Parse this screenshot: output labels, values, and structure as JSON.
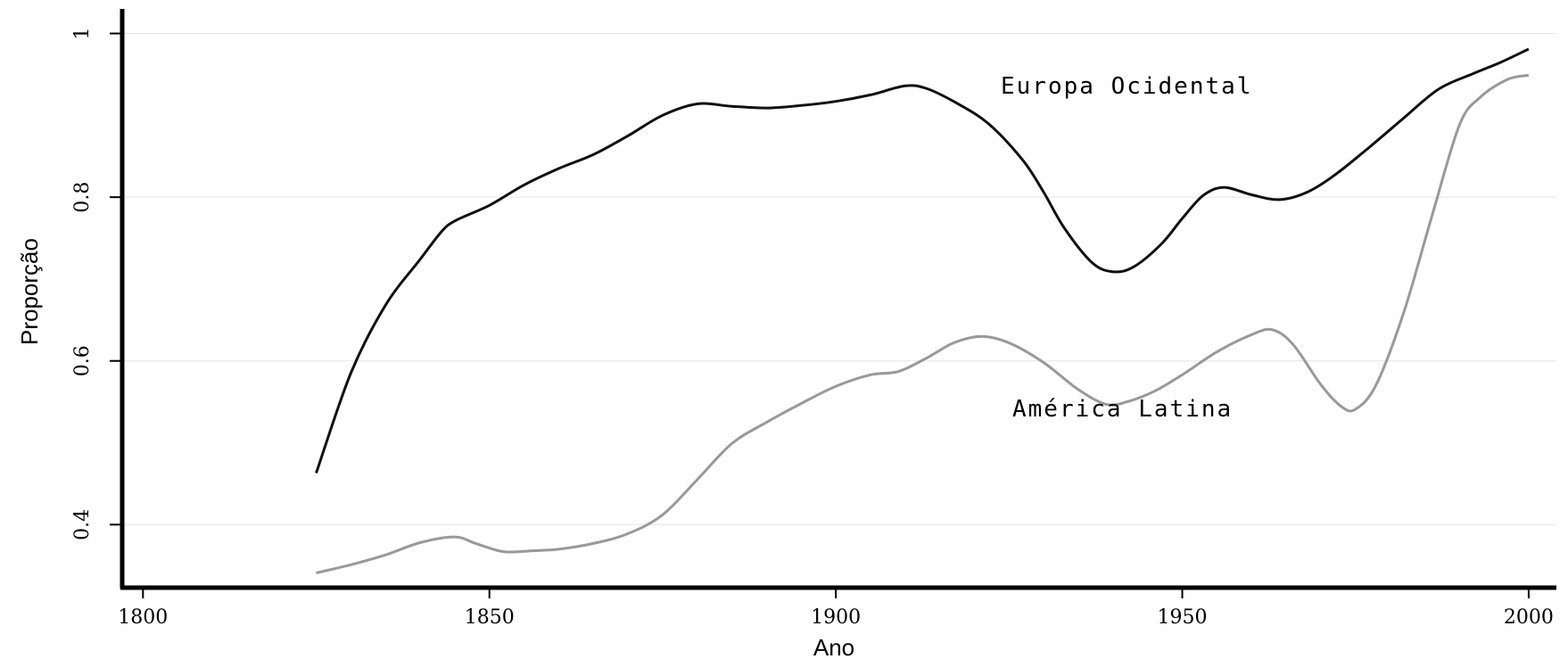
{
  "chart_data": {
    "type": "line",
    "title": "",
    "xlabel": "Ano",
    "ylabel": "Proporção",
    "xlim": [
      1797,
      2004
    ],
    "ylim": [
      0.323,
      1.03
    ],
    "x_ticks": [
      1800,
      1850,
      1900,
      1950,
      2000
    ],
    "x_tick_labels": [
      "1800",
      "1850",
      "1900",
      "1950",
      "2000"
    ],
    "y_ticks": [
      0.4,
      0.6,
      0.8,
      1.0
    ],
    "y_tick_labels": [
      "0.4",
      "0.6",
      "0.8",
      "1"
    ],
    "grid": "horizontal",
    "colors": {
      "europa": "#111111",
      "america": "#999999",
      "grid": "#e4e4e4"
    },
    "series": [
      {
        "name": "Europa Ocidental",
        "color": "#111111",
        "points": [
          [
            1825,
            0.463
          ],
          [
            1830,
            0.585
          ],
          [
            1835,
            0.668
          ],
          [
            1840,
            0.724
          ],
          [
            1843,
            0.757
          ],
          [
            1845,
            0.771
          ],
          [
            1850,
            0.79
          ],
          [
            1855,
            0.815
          ],
          [
            1860,
            0.835
          ],
          [
            1865,
            0.852
          ],
          [
            1870,
            0.875
          ],
          [
            1875,
            0.9
          ],
          [
            1880,
            0.914
          ],
          [
            1885,
            0.911
          ],
          [
            1890,
            0.909
          ],
          [
            1895,
            0.912
          ],
          [
            1900,
            0.917
          ],
          [
            1905,
            0.925
          ],
          [
            1910,
            0.936
          ],
          [
            1913,
            0.933
          ],
          [
            1917,
            0.917
          ],
          [
            1922,
            0.89
          ],
          [
            1927,
            0.845
          ],
          [
            1930,
            0.806
          ],
          [
            1933,
            0.762
          ],
          [
            1937,
            0.72
          ],
          [
            1940,
            0.709
          ],
          [
            1943,
            0.715
          ],
          [
            1947,
            0.743
          ],
          [
            1950,
            0.774
          ],
          [
            1953,
            0.802
          ],
          [
            1956,
            0.812
          ],
          [
            1960,
            0.803
          ],
          [
            1964,
            0.797
          ],
          [
            1968,
            0.806
          ],
          [
            1972,
            0.827
          ],
          [
            1977,
            0.861
          ],
          [
            1982,
            0.897
          ],
          [
            1987,
            0.932
          ],
          [
            1992,
            0.951
          ],
          [
            1996,
            0.965
          ],
          [
            2000,
            0.981
          ]
        ]
      },
      {
        "name": "América Latina",
        "color": "#999999",
        "points": [
          [
            1825,
            0.341
          ],
          [
            1830,
            0.351
          ],
          [
            1835,
            0.363
          ],
          [
            1840,
            0.378
          ],
          [
            1845,
            0.385
          ],
          [
            1848,
            0.377
          ],
          [
            1852,
            0.367
          ],
          [
            1856,
            0.368
          ],
          [
            1860,
            0.37
          ],
          [
            1865,
            0.377
          ],
          [
            1870,
            0.389
          ],
          [
            1875,
            0.412
          ],
          [
            1880,
            0.455
          ],
          [
            1885,
            0.499
          ],
          [
            1890,
            0.525
          ],
          [
            1895,
            0.548
          ],
          [
            1900,
            0.569
          ],
          [
            1905,
            0.583
          ],
          [
            1909,
            0.587
          ],
          [
            1913,
            0.603
          ],
          [
            1917,
            0.622
          ],
          [
            1921,
            0.63
          ],
          [
            1925,
            0.622
          ],
          [
            1930,
            0.598
          ],
          [
            1935,
            0.565
          ],
          [
            1939,
            0.547
          ],
          [
            1942,
            0.55
          ],
          [
            1946,
            0.563
          ],
          [
            1950,
            0.583
          ],
          [
            1955,
            0.611
          ],
          [
            1960,
            0.632
          ],
          [
            1963,
            0.638
          ],
          [
            1966,
            0.62
          ],
          [
            1970,
            0.571
          ],
          [
            1973,
            0.544
          ],
          [
            1975,
            0.541
          ],
          [
            1978,
            0.571
          ],
          [
            1982,
            0.66
          ],
          [
            1986,
            0.776
          ],
          [
            1990,
            0.888
          ],
          [
            1993,
            0.922
          ],
          [
            1997,
            0.944
          ],
          [
            2000,
            0.949
          ]
        ]
      }
    ],
    "annotations": [
      {
        "text": "Europa Ocidental",
        "series": "Europa Ocidental"
      },
      {
        "text": "América Latina",
        "series": "América Latina"
      }
    ]
  }
}
